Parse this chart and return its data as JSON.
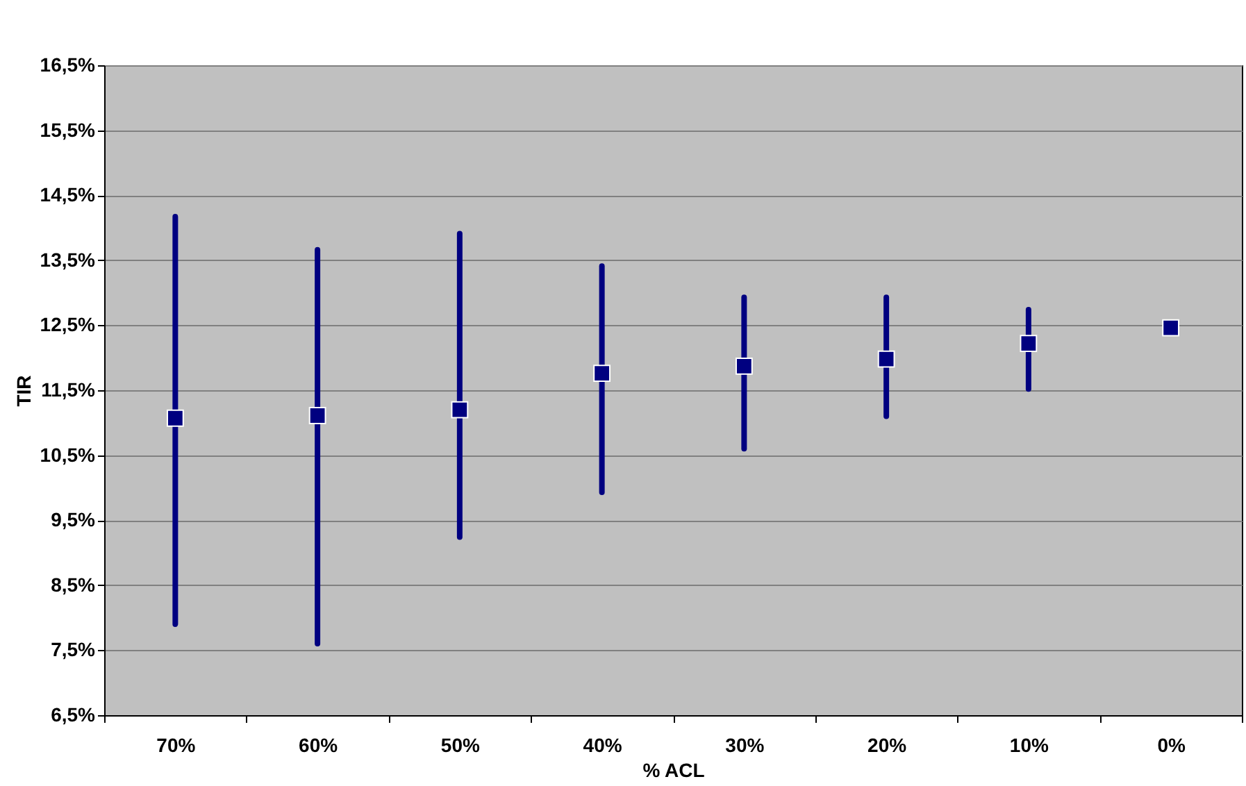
{
  "chart_data": {
    "type": "scatter",
    "xlabel": "% ACL",
    "ylabel": "TIR",
    "categories": [
      "70%",
      "60%",
      "50%",
      "40%",
      "30%",
      "20%",
      "10%",
      "0%"
    ],
    "series": [
      {
        "color": "#000080",
        "values": [
          11.07,
          11.11,
          11.2,
          11.76,
          11.87,
          11.98,
          12.22,
          12.46
        ],
        "errors": [
          [
            7.9,
            14.17
          ],
          [
            7.6,
            13.66
          ],
          [
            9.24,
            13.91
          ],
          [
            9.93,
            13.41
          ],
          [
            10.6,
            12.93
          ],
          [
            11.1,
            12.93
          ],
          [
            11.52,
            12.74
          ],
          null
        ]
      }
    ],
    "ylim": [
      6.5,
      16.5
    ],
    "yticks": [
      {
        "value": 6.5,
        "label": "6,5%"
      },
      {
        "value": 7.5,
        "label": "7,5%"
      },
      {
        "value": 8.5,
        "label": "8,5%"
      },
      {
        "value": 9.5,
        "label": "9,5%"
      },
      {
        "value": 10.5,
        "label": "10,5%"
      },
      {
        "value": 11.5,
        "label": "11,5%"
      },
      {
        "value": 12.5,
        "label": "12,5%"
      },
      {
        "value": 13.5,
        "label": "13,5%"
      },
      {
        "value": 14.5,
        "label": "14,5%"
      },
      {
        "value": 15.5,
        "label": "15,5%"
      },
      {
        "value": 16.5,
        "label": "16,5%"
      }
    ],
    "grid": "y",
    "legend": false,
    "marker": "square"
  }
}
